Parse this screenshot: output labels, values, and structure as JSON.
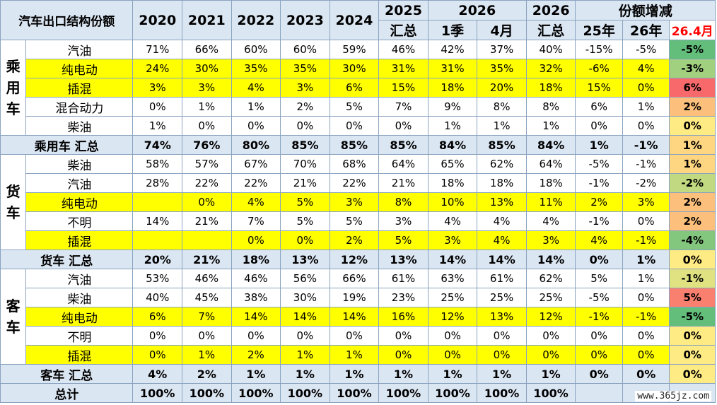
{
  "chart_data": {
    "type": "table",
    "title": "汽车出口结构份额",
    "header_top": [
      "2020",
      "2021",
      "2022",
      "2023",
      "2024",
      "2025",
      "2026",
      "2026",
      "份额增减"
    ],
    "columns": [
      "2020",
      "2021",
      "2022",
      "2023",
      "2024",
      "2025 汇总",
      "2026 1季",
      "2026 4月",
      "2026 汇总",
      "25年",
      "26年",
      "26.4月"
    ],
    "col_sub": [
      "",
      "",
      "",
      "",
      "",
      "汇总",
      "1季",
      "4月",
      "汇总",
      "25年",
      "26年",
      "26.4月"
    ],
    "groups": [
      {
        "name": "乘用车",
        "rows": [
          {
            "label": "汽油",
            "values": [
              "71%",
              "66%",
              "60%",
              "60%",
              "59%",
              "46%",
              "42%",
              "37%",
              "40%",
              "-15%",
              "-5%",
              "-5%"
            ]
          },
          {
            "label": "纯电动",
            "values": [
              "24%",
              "30%",
              "35%",
              "35%",
              "30%",
              "31%",
              "31%",
              "35%",
              "32%",
              "-6%",
              "4%",
              "-3%"
            ]
          },
          {
            "label": "插混",
            "values": [
              "3%",
              "3%",
              "4%",
              "3%",
              "6%",
              "15%",
              "18%",
              "20%",
              "18%",
              "15%",
              "0%",
              "6%"
            ]
          },
          {
            "label": "混合动力",
            "values": [
              "0%",
              "1%",
              "1%",
              "2%",
              "5%",
              "7%",
              "9%",
              "8%",
              "8%",
              "6%",
              "1%",
              "2%"
            ]
          },
          {
            "label": "柴油",
            "values": [
              "1%",
              "0%",
              "0%",
              "0%",
              "0%",
              "0%",
              "1%",
              "1%",
              "1%",
              "0%",
              "0%",
              "0%"
            ]
          }
        ],
        "subtotal": {
          "label": "乘用车 汇总",
          "values": [
            "74%",
            "76%",
            "80%",
            "85%",
            "85%",
            "85%",
            "84%",
            "85%",
            "84%",
            "1%",
            "-1%",
            "1%"
          ]
        }
      },
      {
        "name": "货车",
        "rows": [
          {
            "label": "柴油",
            "values": [
              "58%",
              "57%",
              "67%",
              "70%",
              "68%",
              "64%",
              "65%",
              "62%",
              "64%",
              "-5%",
              "-1%",
              "1%"
            ]
          },
          {
            "label": "汽油",
            "values": [
              "28%",
              "22%",
              "22%",
              "21%",
              "22%",
              "21%",
              "18%",
              "18%",
              "18%",
              "-1%",
              "-2%",
              "-2%"
            ]
          },
          {
            "label": "纯电动",
            "values": [
              "",
              "0%",
              "4%",
              "5%",
              "3%",
              "8%",
              "10%",
              "13%",
              "11%",
              "2%",
              "3%",
              "2%"
            ]
          },
          {
            "label": "不明",
            "values": [
              "14%",
              "21%",
              "7%",
              "5%",
              "5%",
              "3%",
              "4%",
              "4%",
              "4%",
              "-1%",
              "0%",
              "2%"
            ]
          },
          {
            "label": "插混",
            "values": [
              "",
              "",
              "0%",
              "0%",
              "2%",
              "5%",
              "3%",
              "4%",
              "3%",
              "4%",
              "-1%",
              "-4%"
            ]
          }
        ],
        "subtotal": {
          "label": "货车 汇总",
          "values": [
            "20%",
            "21%",
            "18%",
            "13%",
            "12%",
            "13%",
            "14%",
            "14%",
            "14%",
            "0%",
            "1%",
            "0%"
          ]
        }
      },
      {
        "name": "客车",
        "rows": [
          {
            "label": "汽油",
            "values": [
              "53%",
              "46%",
              "46%",
              "56%",
              "66%",
              "61%",
              "63%",
              "61%",
              "62%",
              "5%",
              "1%",
              "-1%"
            ]
          },
          {
            "label": "柴油",
            "values": [
              "40%",
              "45%",
              "38%",
              "30%",
              "19%",
              "23%",
              "25%",
              "25%",
              "25%",
              "-5%",
              "0%",
              "5%"
            ]
          },
          {
            "label": "纯电动",
            "values": [
              "6%",
              "7%",
              "14%",
              "14%",
              "14%",
              "16%",
              "12%",
              "13%",
              "12%",
              "-1%",
              "-1%",
              "-5%"
            ]
          },
          {
            "label": "不明",
            "values": [
              "0%",
              "0%",
              "0%",
              "0%",
              "0%",
              "0%",
              "0%",
              "0%",
              "0%",
              "0%",
              "0%",
              "0%"
            ]
          },
          {
            "label": "插混",
            "values": [
              "0%",
              "1%",
              "2%",
              "1%",
              "1%",
              "0%",
              "0%",
              "0%",
              "0%",
              "0%",
              "0%",
              "0%"
            ]
          }
        ],
        "subtotal": {
          "label": "客车 汇总",
          "values": [
            "4%",
            "2%",
            "1%",
            "1%",
            "1%",
            "1%",
            "1%",
            "1%",
            "1%",
            "0%",
            "0%",
            "0%"
          ]
        }
      }
    ],
    "total": {
      "label": "总计",
      "values": [
        "100%",
        "100%",
        "100%",
        "100%",
        "100%",
        "100%",
        "100%",
        "100%",
        "100%",
        "",
        "",
        ""
      ]
    }
  },
  "highlight_rows": [
    "纯电动",
    "插混"
  ],
  "colors": {
    "header_bg": "#dbe6f3",
    "highlight": "#ffff00",
    "last_header_text": "#ff0000",
    "scale_negative": "#63be7b",
    "scale_zero": "#ffeb84",
    "scale_positive": "#f8696b"
  },
  "watermark": "www.365jz.com"
}
